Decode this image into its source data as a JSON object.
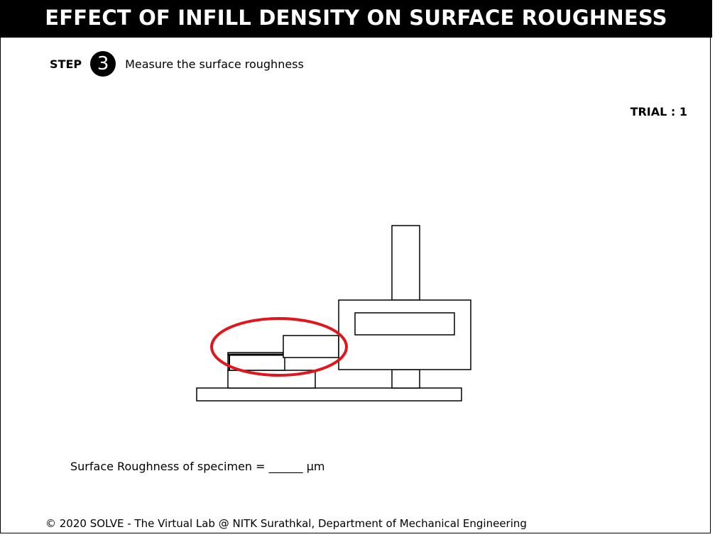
{
  "header": {
    "title": "EFFECT OF INFILL DENSITY ON SURFACE ROUGHNESS"
  },
  "step": {
    "label": "STEP",
    "number": "3",
    "instruction": "Measure the surface roughness"
  },
  "trial": {
    "text": "TRIAL : 1"
  },
  "result": {
    "prefix": "Surface Roughness of specimen = ",
    "blank": "______",
    "unit": " μm"
  },
  "footer": {
    "text": "© 2020 SOLVE - The Virtual Lab @ NITK Surathkal, Department of Mechanical Engineering"
  },
  "colors": {
    "highlight": "#e0161c",
    "ink": "#000000",
    "background": "#ffffff"
  }
}
